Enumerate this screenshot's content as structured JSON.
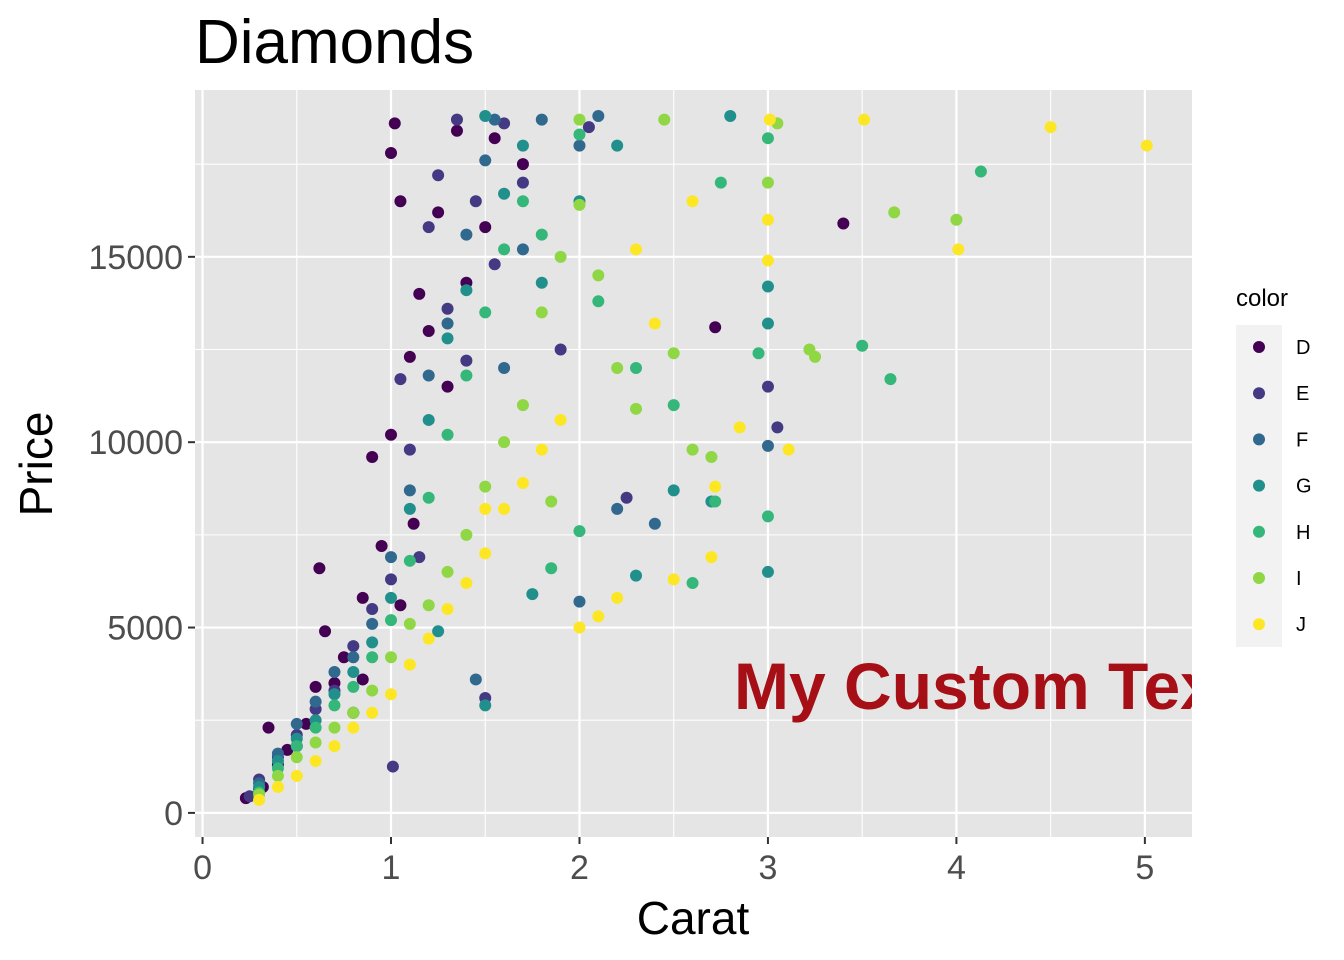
{
  "chart_data": {
    "type": "scatter",
    "title": "Diamonds",
    "xlabel": "Carat",
    "ylabel": "Price",
    "xlim": [
      -0.04,
      5.25
    ],
    "ylim": [
      -650,
      19500
    ],
    "x_ticks": [
      0,
      1,
      2,
      3,
      4,
      5
    ],
    "x_tick_labels": [
      "0",
      "1",
      "2",
      "3",
      "4",
      "5"
    ],
    "y_ticks": [
      0,
      5000,
      10000,
      15000
    ],
    "y_tick_labels": [
      "0",
      "5000",
      "10000",
      "15000"
    ],
    "grid": true,
    "legend": {
      "title": "color",
      "position": "right",
      "entries": [
        {
          "label": "D",
          "color": "#440154"
        },
        {
          "label": "E",
          "color": "#443A83"
        },
        {
          "label": "F",
          "color": "#31688E"
        },
        {
          "label": "G",
          "color": "#21908C"
        },
        {
          "label": "H",
          "color": "#35B779"
        },
        {
          "label": "I",
          "color": "#8FD744"
        },
        {
          "label": "J",
          "color": "#FDE725"
        }
      ]
    },
    "annotation": {
      "text": "My Custom Text",
      "x": 2.82,
      "y": 3400,
      "color": "#A50F15"
    },
    "series": [
      {
        "name": "D",
        "color": "#440154",
        "points": [
          [
            0.23,
            400
          ],
          [
            0.3,
            650
          ],
          [
            0.32,
            700
          ],
          [
            0.35,
            2300
          ],
          [
            0.4,
            1300
          ],
          [
            0.45,
            1700
          ],
          [
            0.5,
            1800
          ],
          [
            0.55,
            2400
          ],
          [
            0.6,
            3400
          ],
          [
            0.62,
            6600
          ],
          [
            0.7,
            3500
          ],
          [
            0.75,
            4200
          ],
          [
            0.8,
            2700
          ],
          [
            0.85,
            5800
          ],
          [
            0.9,
            9600
          ],
          [
            0.95,
            7200
          ],
          [
            1.0,
            10200
          ],
          [
            1.0,
            17800
          ],
          [
            1.02,
            18600
          ],
          [
            1.05,
            16500
          ],
          [
            1.1,
            12300
          ],
          [
            1.15,
            14000
          ],
          [
            1.2,
            13000
          ],
          [
            1.25,
            16200
          ],
          [
            1.3,
            11500
          ],
          [
            1.35,
            18400
          ],
          [
            1.4,
            14300
          ],
          [
            1.5,
            15800
          ],
          [
            1.55,
            18200
          ],
          [
            1.7,
            17500
          ],
          [
            0.65,
            4900
          ],
          [
            0.85,
            3600
          ],
          [
            1.05,
            5600
          ],
          [
            1.12,
            7800
          ],
          [
            3.4,
            15900
          ],
          [
            2.72,
            13100
          ]
        ]
      },
      {
        "name": "E",
        "color": "#443A83",
        "points": [
          [
            0.25,
            450
          ],
          [
            0.3,
            900
          ],
          [
            0.4,
            1500
          ],
          [
            0.5,
            2100
          ],
          [
            0.6,
            2800
          ],
          [
            0.7,
            3300
          ],
          [
            0.8,
            4500
          ],
          [
            0.9,
            5500
          ],
          [
            1.0,
            6300
          ],
          [
            1.01,
            1250
          ],
          [
            1.05,
            11700
          ],
          [
            1.1,
            9800
          ],
          [
            1.2,
            15800
          ],
          [
            1.25,
            17200
          ],
          [
            1.3,
            13600
          ],
          [
            1.35,
            18700
          ],
          [
            1.45,
            16500
          ],
          [
            1.5,
            3100
          ],
          [
            1.55,
            14800
          ],
          [
            1.6,
            18600
          ],
          [
            1.7,
            17000
          ],
          [
            1.9,
            12500
          ],
          [
            2.05,
            18500
          ],
          [
            3.0,
            11500
          ],
          [
            3.05,
            10400
          ],
          [
            2.25,
            8500
          ],
          [
            1.15,
            6900
          ],
          [
            1.4,
            12200
          ]
        ]
      },
      {
        "name": "F",
        "color": "#31688E",
        "points": [
          [
            0.3,
            800
          ],
          [
            0.4,
            1600
          ],
          [
            0.5,
            2400
          ],
          [
            0.6,
            3000
          ],
          [
            0.7,
            3800
          ],
          [
            0.8,
            4200
          ],
          [
            0.9,
            5100
          ],
          [
            1.0,
            6900
          ],
          [
            1.1,
            8700
          ],
          [
            1.2,
            11800
          ],
          [
            1.3,
            13200
          ],
          [
            1.4,
            15600
          ],
          [
            1.5,
            17600
          ],
          [
            1.55,
            18700
          ],
          [
            1.6,
            12000
          ],
          [
            1.7,
            15200
          ],
          [
            1.8,
            18700
          ],
          [
            2.0,
            18000
          ],
          [
            2.1,
            18800
          ],
          [
            2.2,
            8200
          ],
          [
            2.4,
            7800
          ],
          [
            3.0,
            9900
          ],
          [
            2.0,
            5700
          ],
          [
            1.45,
            3600
          ]
        ]
      },
      {
        "name": "G",
        "color": "#21908C",
        "points": [
          [
            0.3,
            700
          ],
          [
            0.4,
            1400
          ],
          [
            0.5,
            2000
          ],
          [
            0.6,
            2500
          ],
          [
            0.7,
            3200
          ],
          [
            0.8,
            3800
          ],
          [
            0.9,
            4600
          ],
          [
            1.0,
            5800
          ],
          [
            1.1,
            8200
          ],
          [
            1.2,
            10600
          ],
          [
            1.3,
            12800
          ],
          [
            1.4,
            14100
          ],
          [
            1.5,
            18800
          ],
          [
            1.5,
            2900
          ],
          [
            1.6,
            16700
          ],
          [
            1.7,
            18000
          ],
          [
            1.8,
            14300
          ],
          [
            2.0,
            16500
          ],
          [
            2.2,
            18000
          ],
          [
            2.3,
            6400
          ],
          [
            2.5,
            8700
          ],
          [
            2.7,
            8400
          ],
          [
            2.8,
            18800
          ],
          [
            3.0,
            14200
          ],
          [
            3.0,
            13200
          ],
          [
            3.0,
            6500
          ],
          [
            1.75,
            5900
          ],
          [
            1.25,
            4900
          ]
        ]
      },
      {
        "name": "H",
        "color": "#35B779",
        "points": [
          [
            0.3,
            550
          ],
          [
            0.4,
            1200
          ],
          [
            0.5,
            1800
          ],
          [
            0.6,
            2300
          ],
          [
            0.7,
            2900
          ],
          [
            0.8,
            3400
          ],
          [
            0.9,
            4200
          ],
          [
            1.0,
            5200
          ],
          [
            1.1,
            6800
          ],
          [
            1.2,
            8500
          ],
          [
            1.3,
            10200
          ],
          [
            1.4,
            11800
          ],
          [
            1.5,
            13500
          ],
          [
            1.6,
            15200
          ],
          [
            1.7,
            16500
          ],
          [
            1.8,
            15600
          ],
          [
            2.0,
            18300
          ],
          [
            2.1,
            13800
          ],
          [
            2.3,
            12000
          ],
          [
            2.5,
            11000
          ],
          [
            2.75,
            17000
          ],
          [
            2.95,
            12400
          ],
          [
            3.0,
            18200
          ],
          [
            3.0,
            8000
          ],
          [
            3.5,
            12600
          ],
          [
            3.65,
            11700
          ],
          [
            4.13,
            17300
          ],
          [
            2.6,
            6200
          ],
          [
            2.0,
            7600
          ],
          [
            1.85,
            6600
          ],
          [
            2.72,
            8400
          ]
        ]
      },
      {
        "name": "I",
        "color": "#8FD744",
        "points": [
          [
            0.3,
            500
          ],
          [
            0.4,
            1000
          ],
          [
            0.5,
            1500
          ],
          [
            0.6,
            1900
          ],
          [
            0.7,
            2300
          ],
          [
            0.8,
            2700
          ],
          [
            0.9,
            3300
          ],
          [
            1.0,
            4200
          ],
          [
            1.1,
            5100
          ],
          [
            1.2,
            5600
          ],
          [
            1.3,
            6500
          ],
          [
            1.4,
            7500
          ],
          [
            1.5,
            8800
          ],
          [
            1.6,
            10000
          ],
          [
            1.7,
            11000
          ],
          [
            1.8,
            13500
          ],
          [
            1.9,
            15000
          ],
          [
            2.0,
            16400
          ],
          [
            2.1,
            14500
          ],
          [
            2.2,
            12000
          ],
          [
            2.3,
            10900
          ],
          [
            2.5,
            12400
          ],
          [
            2.6,
            9800
          ],
          [
            2.7,
            9600
          ],
          [
            3.0,
            17000
          ],
          [
            3.05,
            18600
          ],
          [
            3.22,
            12500
          ],
          [
            3.25,
            12300
          ],
          [
            3.67,
            16200
          ],
          [
            4.0,
            16000
          ],
          [
            1.85,
            8400
          ],
          [
            2.45,
            18700
          ],
          [
            2.0,
            18700
          ]
        ]
      },
      {
        "name": "J",
        "color": "#FDE725",
        "points": [
          [
            0.3,
            350
          ],
          [
            0.4,
            700
          ],
          [
            0.5,
            1000
          ],
          [
            0.6,
            1400
          ],
          [
            0.7,
            1800
          ],
          [
            0.8,
            2300
          ],
          [
            0.9,
            2700
          ],
          [
            1.0,
            3200
          ],
          [
            1.1,
            4000
          ],
          [
            1.2,
            4700
          ],
          [
            1.3,
            5500
          ],
          [
            1.4,
            6200
          ],
          [
            1.5,
            7000
          ],
          [
            1.6,
            8200
          ],
          [
            1.7,
            8900
          ],
          [
            1.8,
            9800
          ],
          [
            1.9,
            10600
          ],
          [
            2.0,
            5000
          ],
          [
            2.1,
            5300
          ],
          [
            2.2,
            5800
          ],
          [
            2.3,
            15200
          ],
          [
            2.4,
            13200
          ],
          [
            2.5,
            6300
          ],
          [
            2.6,
            16500
          ],
          [
            2.7,
            6900
          ],
          [
            2.72,
            8800
          ],
          [
            2.85,
            10400
          ],
          [
            3.0,
            14900
          ],
          [
            3.0,
            16000
          ],
          [
            3.01,
            18700
          ],
          [
            3.11,
            9800
          ],
          [
            3.51,
            18700
          ],
          [
            4.01,
            15200
          ],
          [
            4.5,
            18500
          ],
          [
            5.01,
            18000
          ],
          [
            1.5,
            8200
          ]
        ]
      }
    ]
  }
}
